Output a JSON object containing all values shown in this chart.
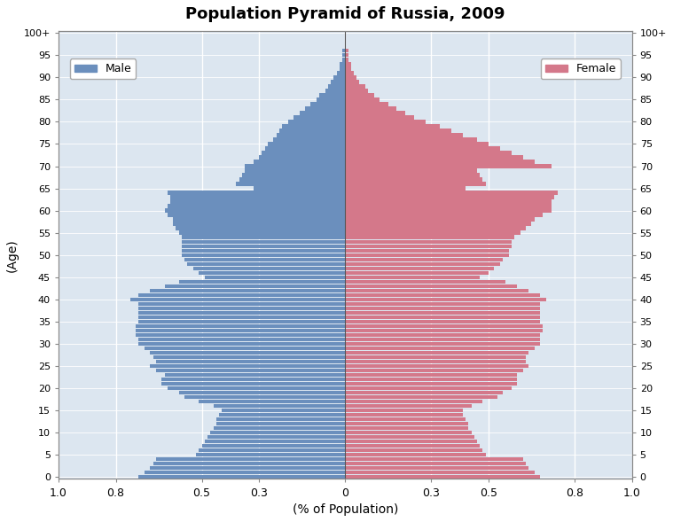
{
  "title": "Population Pyramid of Russia, 2009",
  "xlabel": "(% of Population)",
  "ylabel": "(Age)",
  "male_color": "#6b8fbd",
  "female_color": "#d4788a",
  "background_color": "#dce6f0",
  "grid_color": "#ffffff",
  "xlim": 1.0,
  "xticks": [
    -1.0,
    -0.8,
    -0.5,
    -0.3,
    0.0,
    0.3,
    0.5,
    0.8,
    1.0
  ],
  "xticklabels": [
    "1.0",
    "0.8",
    "0.5",
    "0.3",
    "0",
    "0.3",
    "0.5",
    "0.8",
    "1.0"
  ],
  "ytick_step": 5,
  "bar_height": 0.85,
  "ages": [
    0,
    1,
    2,
    3,
    4,
    5,
    6,
    7,
    8,
    9,
    10,
    11,
    12,
    13,
    14,
    15,
    16,
    17,
    18,
    19,
    20,
    21,
    22,
    23,
    24,
    25,
    26,
    27,
    28,
    29,
    30,
    31,
    32,
    33,
    34,
    35,
    36,
    37,
    38,
    39,
    40,
    41,
    42,
    43,
    44,
    45,
    46,
    47,
    48,
    49,
    50,
    51,
    52,
    53,
    54,
    55,
    56,
    57,
    58,
    59,
    60,
    61,
    62,
    63,
    64,
    65,
    66,
    67,
    68,
    69,
    70,
    71,
    72,
    73,
    74,
    75,
    76,
    77,
    78,
    79,
    80,
    81,
    82,
    83,
    84,
    85,
    86,
    87,
    88,
    89,
    90,
    91,
    92,
    93,
    94,
    95,
    96,
    97,
    98,
    99,
    100
  ],
  "male": [
    0.72,
    0.7,
    0.68,
    0.67,
    0.66,
    0.52,
    0.51,
    0.5,
    0.49,
    0.48,
    0.47,
    0.46,
    0.45,
    0.45,
    0.44,
    0.43,
    0.46,
    0.51,
    0.56,
    0.58,
    0.62,
    0.64,
    0.64,
    0.63,
    0.66,
    0.68,
    0.66,
    0.67,
    0.68,
    0.7,
    0.72,
    0.72,
    0.73,
    0.73,
    0.73,
    0.72,
    0.72,
    0.72,
    0.72,
    0.72,
    0.75,
    0.72,
    0.68,
    0.63,
    0.58,
    0.49,
    0.51,
    0.53,
    0.55,
    0.56,
    0.57,
    0.57,
    0.57,
    0.57,
    0.57,
    0.58,
    0.59,
    0.6,
    0.6,
    0.62,
    0.63,
    0.62,
    0.61,
    0.61,
    0.62,
    0.32,
    0.38,
    0.37,
    0.36,
    0.35,
    0.35,
    0.32,
    0.3,
    0.29,
    0.28,
    0.27,
    0.25,
    0.24,
    0.23,
    0.22,
    0.2,
    0.18,
    0.16,
    0.14,
    0.12,
    0.1,
    0.09,
    0.07,
    0.06,
    0.05,
    0.04,
    0.03,
    0.02,
    0.02,
    0.01,
    0.01,
    0.01,
    0.0,
    0.0,
    0.0,
    0.0
  ],
  "female": [
    0.68,
    0.66,
    0.64,
    0.63,
    0.62,
    0.49,
    0.48,
    0.47,
    0.46,
    0.45,
    0.44,
    0.43,
    0.43,
    0.42,
    0.41,
    0.41,
    0.44,
    0.48,
    0.53,
    0.55,
    0.58,
    0.6,
    0.6,
    0.6,
    0.62,
    0.64,
    0.63,
    0.63,
    0.64,
    0.66,
    0.68,
    0.68,
    0.68,
    0.69,
    0.69,
    0.68,
    0.68,
    0.68,
    0.68,
    0.68,
    0.7,
    0.68,
    0.64,
    0.6,
    0.56,
    0.47,
    0.5,
    0.52,
    0.54,
    0.55,
    0.57,
    0.57,
    0.58,
    0.58,
    0.59,
    0.61,
    0.63,
    0.65,
    0.66,
    0.69,
    0.72,
    0.72,
    0.72,
    0.73,
    0.74,
    0.42,
    0.49,
    0.48,
    0.47,
    0.46,
    0.72,
    0.66,
    0.62,
    0.58,
    0.54,
    0.5,
    0.46,
    0.41,
    0.37,
    0.33,
    0.28,
    0.24,
    0.21,
    0.18,
    0.15,
    0.12,
    0.1,
    0.08,
    0.07,
    0.05,
    0.04,
    0.03,
    0.02,
    0.02,
    0.01,
    0.01,
    0.01,
    0.0,
    0.0,
    0.0,
    0.0
  ]
}
